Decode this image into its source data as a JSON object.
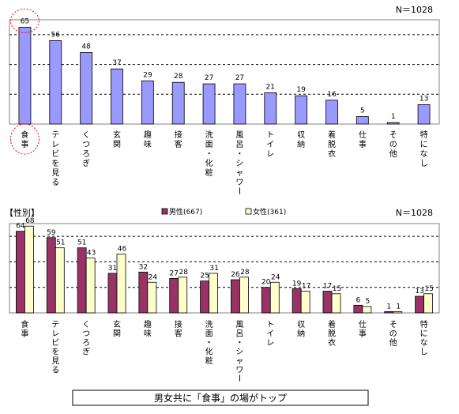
{
  "colors": {
    "overall": "#9999ff",
    "male": "#993366",
    "female": "#ffffcc",
    "highlight": "#ff0000"
  },
  "chart_data": [
    {
      "type": "bar",
      "n_label": "N＝1028",
      "categories": [
        "食事",
        "テレビを見る",
        "くつろぎ",
        "玄関",
        "趣味",
        "接客",
        "洗面・化粧",
        "風呂・シャワー",
        "トイレ",
        "収納",
        "着脱衣",
        "仕事",
        "その他",
        "特になし"
      ],
      "series": [
        {
          "values": [
            65,
            56,
            48,
            37,
            29,
            28,
            27,
            27,
            21,
            19,
            16,
            5,
            1,
            13
          ],
          "labels": [
            "65",
            "56",
            "48",
            "37",
            "29",
            "28",
            "27",
            "27",
            "21",
            "19",
            "16",
            "5",
            "1",
            "13"
          ]
        }
      ],
      "ylim": [
        0,
        70
      ],
      "grid": true,
      "highlighted_category": "食事"
    },
    {
      "type": "bar",
      "panel_label": "【性別】",
      "n_label": "N＝1028",
      "categories": [
        "食事",
        "テレビを見る",
        "くつろぎ",
        "玄関",
        "趣味",
        "接客",
        "洗面・化粧",
        "風呂・シャワー",
        "トイレ",
        "収納",
        "着脱衣",
        "仕事",
        "その他",
        "特になし"
      ],
      "series": [
        {
          "name": "男性(667)",
          "values": [
            64,
            59,
            51,
            31,
            32,
            27,
            25,
            26,
            20,
            19,
            17,
            6,
            1,
            13
          ],
          "labels": [
            "64",
            "59",
            "51",
            "31",
            "32",
            "27",
            "25",
            "26",
            "20",
            "19",
            "17",
            "6",
            "1",
            "13"
          ]
        },
        {
          "name": "女性(361)",
          "values": [
            68,
            51,
            43,
            46,
            24,
            28,
            31,
            28,
            24,
            17,
            15,
            5,
            1,
            15
          ],
          "labels": [
            "68",
            "51",
            "43",
            "46",
            "24",
            "28",
            "31",
            "28",
            "24",
            "17",
            "15",
            "5",
            "1",
            "15"
          ]
        }
      ],
      "ylim": [
        0,
        70
      ],
      "grid": true,
      "legend_placement": "top-center"
    }
  ],
  "caption": "男女共に「食事」の場がトップ"
}
